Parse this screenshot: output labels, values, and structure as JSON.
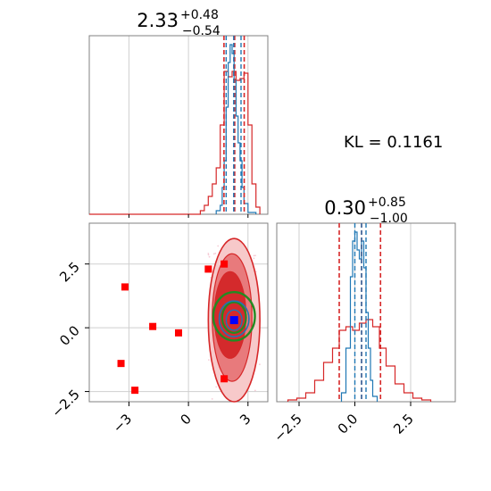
{
  "colors": {
    "red": "#d62728",
    "blue": "#1f77b4",
    "green": "#228b22",
    "fill_dark": "#d42a2c",
    "fill_mid": "#e87a7c",
    "fill_light": "#f7c9ca",
    "marker_blue": "#0000ff",
    "marker_red": "#ff0000"
  },
  "kl_text": "KL = 0.1161",
  "chart_data": [
    {
      "type": "histogram",
      "panel": "top-left",
      "title": {
        "value": "2.33",
        "upper": "+0.48",
        "lower": "−0.54"
      },
      "xlim": [
        -5,
        4
      ],
      "show_xtick_labels": false,
      "grid": true,
      "series": [
        {
          "name": "",
          "color": "#d62728",
          "bin_edges": [
            -5.0,
            0.6,
            0.8,
            1.0,
            1.2,
            1.4,
            1.6,
            1.8,
            2.0,
            2.2,
            2.4,
            2.6,
            2.8,
            3.0,
            3.2,
            3.4,
            3.6
          ],
          "heights": [
            0.0,
            0.02,
            0.05,
            0.1,
            0.17,
            0.26,
            0.5,
            0.8,
            0.77,
            0.8,
            0.75,
            0.76,
            0.79,
            0.5,
            0.17,
            0.04
          ]
        },
        {
          "name": "",
          "color": "#1f77b4",
          "bin_edges": [
            1.4,
            1.6,
            1.7,
            1.8,
            1.9,
            2.0,
            2.1,
            2.2,
            2.3,
            2.4,
            2.5,
            2.6,
            2.7,
            2.8,
            3.0,
            3.4
          ],
          "heights": [
            0.02,
            0.05,
            0.15,
            0.3,
            0.6,
            0.85,
            0.95,
            0.9,
            0.75,
            0.55,
            0.4,
            0.3,
            0.15,
            0.06,
            0.01
          ]
        }
      ],
      "red_quantiles": [
        1.79,
        2.33,
        2.81
      ],
      "blue_quantiles": [
        1.9,
        2.28,
        2.65
      ]
    },
    {
      "type": "histogram",
      "panel": "bottom-right",
      "title": {
        "value": "0.30",
        "upper": "+0.85",
        "lower": "−1.00"
      },
      "xlim": [
        -3.5,
        4.5
      ],
      "xticks": [
        -2.5,
        0.0,
        2.5
      ],
      "xtick_labels": [
        "−2.5",
        "0.0",
        "2.5"
      ],
      "grid": true,
      "series": [
        {
          "name": "",
          "color": "#d62728",
          "bin_edges": [
            -3.0,
            -2.6,
            -2.2,
            -1.8,
            -1.4,
            -1.0,
            -0.7,
            -0.4,
            -0.1,
            0.2,
            0.5,
            0.8,
            1.1,
            1.4,
            1.8,
            2.2,
            2.6,
            3.0,
            3.4
          ],
          "heights": [
            0.01,
            0.02,
            0.05,
            0.12,
            0.22,
            0.3,
            0.4,
            0.42,
            0.4,
            0.44,
            0.46,
            0.42,
            0.3,
            0.2,
            0.1,
            0.05,
            0.02,
            0.01
          ]
        },
        {
          "name": "",
          "color": "#1f77b4",
          "bin_edges": [
            -0.6,
            -0.4,
            -0.2,
            -0.1,
            0.0,
            0.1,
            0.2,
            0.3,
            0.4,
            0.5,
            0.6,
            0.7,
            0.8,
            1.0
          ],
          "heights": [
            0.05,
            0.3,
            0.7,
            0.9,
            0.95,
            0.85,
            0.8,
            0.9,
            0.75,
            0.5,
            0.3,
            0.12,
            0.03
          ]
        }
      ],
      "red_quantiles": [
        -0.7,
        0.3,
        1.15
      ],
      "blue_quantiles": [
        0.0,
        0.3,
        0.5
      ]
    },
    {
      "type": "scatter",
      "panel": "bottom-left",
      "xlim": [
        -5,
        4
      ],
      "ylim": [
        -2.9,
        4.1
      ],
      "xticks": [
        -3,
        0,
        3
      ],
      "xtick_labels": [
        "−3",
        "0",
        "3"
      ],
      "yticks": [
        -2.5,
        0.0,
        2.5
      ],
      "ytick_labels": [
        "−2.5",
        "0.0",
        "2.5"
      ],
      "grid": true,
      "red_squares": [
        [
          -3.2,
          1.6
        ],
        [
          -1.8,
          0.05
        ],
        [
          -0.5,
          -0.2
        ],
        [
          1.0,
          2.3
        ],
        [
          1.8,
          2.5
        ],
        [
          1.8,
          -2.0
        ],
        [
          -3.4,
          -1.4
        ],
        [
          -2.7,
          -2.45
        ]
      ],
      "blue_square": [
        2.3,
        0.3
      ],
      "contours": {
        "fill_outer": [
          2.3,
          0.3,
          1.3,
          3.2
        ],
        "fill_mid": [
          2.2,
          0.4,
          1.0,
          2.5
        ],
        "fill_inner": [
          2.1,
          0.5,
          0.8,
          1.7
        ],
        "green_outer": [
          2.3,
          0.45,
          1.05,
          0.95
        ],
        "green_inner": [
          2.3,
          0.4,
          0.6,
          0.6
        ],
        "blue_outer": [
          2.3,
          0.35,
          0.75,
          0.7
        ],
        "blue_inner": [
          2.3,
          0.3,
          0.4,
          0.4
        ]
      }
    }
  ]
}
